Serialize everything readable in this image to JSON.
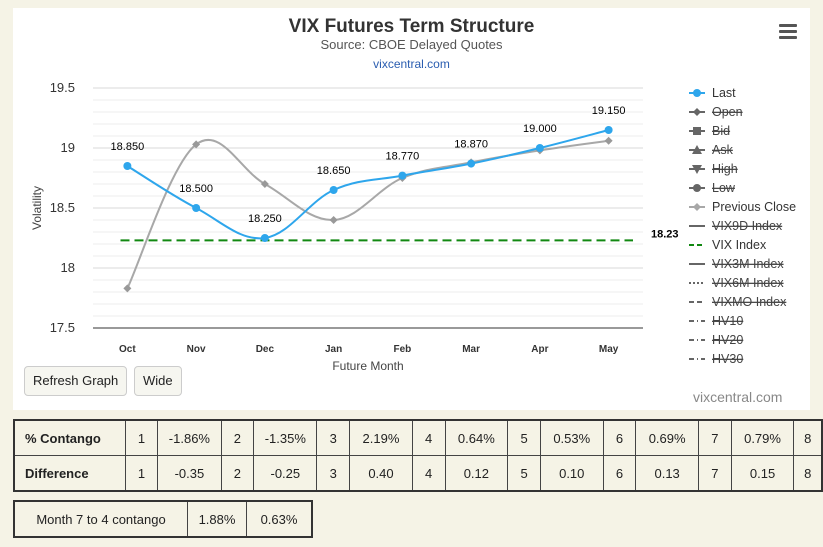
{
  "header": {
    "title": "VIX Futures Term Structure",
    "subtitle": "Source: CBOE Delayed Quotes",
    "link": "vixcentral.com"
  },
  "buttons": {
    "refresh": "Refresh Graph",
    "wide": "Wide"
  },
  "credit": "vixcentral.com",
  "chart_data": {
    "type": "line",
    "title": "VIX Futures Term Structure",
    "subtitle": "Source: CBOE Delayed Quotes",
    "xlabel": "Future Month",
    "ylabel": "Volatility",
    "categories": [
      "Oct",
      "Nov",
      "Dec",
      "Jan",
      "Feb",
      "Mar",
      "Apr",
      "May"
    ],
    "ylim": [
      17.5,
      19.5
    ],
    "yticks": [
      "17.5",
      "18",
      "18.5",
      "19",
      "19.5"
    ],
    "series": [
      {
        "name": "Last",
        "color": "#2ea6ec",
        "values": [
          18.85,
          18.5,
          18.25,
          18.65,
          18.77,
          18.87,
          19.0,
          19.15
        ],
        "labels": [
          "18.850",
          "18.500",
          "18.250",
          "18.650",
          "18.770",
          "18.870",
          "19.000",
          "19.150"
        ]
      },
      {
        "name": "Previous Close",
        "color": "#a8a8a8",
        "values": [
          17.83,
          19.03,
          18.7,
          18.4,
          18.75,
          18.88,
          18.98,
          19.06
        ]
      },
      {
        "name": "VIX Index",
        "color": "#118811",
        "value": 18.23,
        "label": "18.23"
      }
    ],
    "legend": {
      "position": "right",
      "items": [
        {
          "name": "Last",
          "marker": "circle",
          "active": true,
          "color": "#2ea6ec"
        },
        {
          "name": "Open",
          "marker": "diamond",
          "active": false,
          "color": "#666666"
        },
        {
          "name": "Bid",
          "marker": "square",
          "active": false,
          "color": "#666666"
        },
        {
          "name": "Ask",
          "marker": "triangle",
          "active": false,
          "color": "#666666"
        },
        {
          "name": "High",
          "marker": "triangle-down",
          "active": false,
          "color": "#666666"
        },
        {
          "name": "Low",
          "marker": "circle",
          "active": false,
          "color": "#666666"
        },
        {
          "name": "Previous Close",
          "marker": "diamond",
          "active": true,
          "color": "#a8a8a8"
        },
        {
          "name": "VIX9D Index",
          "marker": "solid",
          "active": false,
          "color": "#666666"
        },
        {
          "name": "VIX Index",
          "marker": "dash",
          "active": true,
          "color": "#118811"
        },
        {
          "name": "VIX3M Index",
          "marker": "solid",
          "active": false,
          "color": "#666666"
        },
        {
          "name": "VIX6M Index",
          "marker": "dot",
          "active": false,
          "color": "#666666"
        },
        {
          "name": "VIXMO Index",
          "marker": "dash",
          "active": false,
          "color": "#666666"
        },
        {
          "name": "HV10",
          "marker": "dashdot",
          "active": false,
          "color": "#666666"
        },
        {
          "name": "HV20",
          "marker": "dashdot",
          "active": false,
          "color": "#666666"
        },
        {
          "name": "HV30",
          "marker": "dashdot",
          "active": false,
          "color": "#666666"
        }
      ]
    }
  },
  "contango_table": {
    "rows": [
      {
        "label": "% Contango",
        "cells": [
          "1",
          "-1.86%",
          "2",
          "-1.35%",
          "3",
          "2.19%",
          "4",
          "0.64%",
          "5",
          "0.53%",
          "6",
          "0.69%",
          "7",
          "0.79%",
          "8"
        ]
      },
      {
        "label": "Difference",
        "cells": [
          "1",
          "-0.35",
          "2",
          "-0.25",
          "3",
          "0.40",
          "4",
          "0.12",
          "5",
          "0.10",
          "6",
          "0.13",
          "7",
          "0.15",
          "8"
        ]
      }
    ]
  },
  "month74": {
    "label": "Month 7 to 4 contango",
    "v1": "1.88%",
    "v2": "0.63%"
  }
}
